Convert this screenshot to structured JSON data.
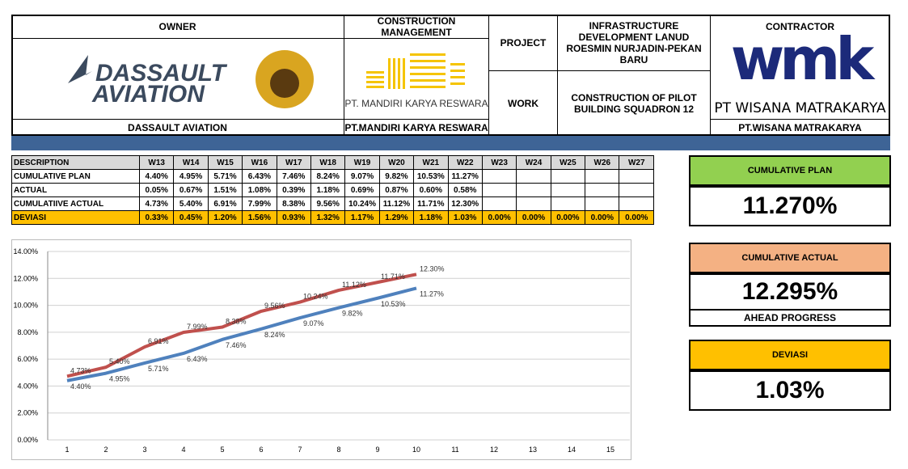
{
  "header": {
    "owner": {
      "title": "OWNER",
      "logo_text": [
        "DASSAULT",
        "AVIATION"
      ],
      "name": "DASSAULT AVIATION"
    },
    "construction_management": {
      "title": "CONSTRUCTION MANAGEMENT",
      "logo_text": "PT. MANDIRI KARYA RESWARA",
      "name": "PT.MANDIRI KARYA RESWARA"
    },
    "project": {
      "label": "PROJECT",
      "value": "INFRASTRUCTURE DEVELOPMENT LANUD ROESMIN NURJADIN-PEKAN BARU"
    },
    "work": {
      "label": "WORK",
      "value": "CONSTRUCTION OF PILOT BUILDING SQUADRON 12"
    },
    "contractor": {
      "title": "CONTRACTOR",
      "logo_text": "wmk",
      "logo_subtext": "PT WISANA MATRAKARYA",
      "name": "PT.WISANA MATRAKARYA"
    }
  },
  "table": {
    "columns": [
      "DESCRIPTION",
      "W13",
      "W14",
      "W15",
      "W16",
      "W17",
      "W18",
      "W19",
      "W20",
      "W21",
      "W22",
      "W23",
      "W24",
      "W25",
      "W26",
      "W27"
    ],
    "rows": [
      [
        "CUMULATIVE PLAN",
        "4.40%",
        "4.95%",
        "5.71%",
        "6.43%",
        "7.46%",
        "8.24%",
        "9.07%",
        "9.82%",
        "10.53%",
        "11.27%",
        null,
        null,
        null,
        null,
        null
      ],
      [
        "ACTUAL",
        "0.05%",
        "0.67%",
        "1.51%",
        "1.08%",
        "0.39%",
        "1.18%",
        "0.69%",
        "0.87%",
        "0.60%",
        "0.58%",
        null,
        null,
        null,
        null,
        null
      ],
      [
        "CUMULATIIVE ACTUAL",
        "4.73%",
        "5.40%",
        "6.91%",
        "7.99%",
        "8.38%",
        "9.56%",
        "10.24%",
        "11.12%",
        "11.71%",
        "12.30%",
        null,
        null,
        null,
        null,
        null
      ],
      [
        "DEVIASI",
        "0.33%",
        "0.45%",
        "1.20%",
        "1.56%",
        "0.93%",
        "1.32%",
        "1.17%",
        "1.29%",
        "1.18%",
        "1.03%",
        "0.00%",
        "0.00%",
        "0.00%",
        "0.00%",
        "0.00%"
      ]
    ]
  },
  "kpis": [
    {
      "title": "CUMULATIVE PLAN",
      "value": "11.270%",
      "color": "#92d050"
    },
    {
      "title": "CUMULATIVE ACTUAL",
      "value": "12.295%",
      "note": "AHEAD PROGRESS",
      "color": "#f4b183"
    },
    {
      "title": "DEVIASI",
      "value": "1.03%",
      "color": "#ffc000"
    }
  ],
  "chart_data": {
    "type": "line",
    "categories": [
      1,
      2,
      3,
      4,
      5,
      6,
      7,
      8,
      9,
      10,
      11,
      12,
      13,
      14,
      15
    ],
    "series": [
      {
        "color": "#4f81bd",
        "values": [
          4.4,
          4.95,
          5.71,
          6.43,
          7.46,
          8.24,
          9.07,
          9.82,
          10.53,
          11.27,
          null,
          null,
          null,
          null,
          null
        ],
        "value_labels": [
          "4.40%",
          "4.95%",
          "5.71%",
          "6.43%",
          "7.46%",
          "8.24%",
          "9.07%",
          "9.82%",
          "10.53%",
          "11.27%",
          null,
          null,
          null,
          null,
          null
        ]
      },
      {
        "color": "#c0504d",
        "values": [
          4.73,
          5.4,
          6.91,
          7.99,
          8.38,
          9.56,
          10.24,
          11.12,
          11.71,
          12.3,
          null,
          null,
          null,
          null,
          null
        ],
        "value_labels": [
          "4.73%",
          "5.40%",
          "6.91%",
          "7.99%",
          "8.38%",
          "9.56%",
          "10.24%",
          "11.12%",
          "11.71%",
          "12.30%",
          null,
          null,
          null,
          null,
          null
        ]
      }
    ],
    "ylim": [
      0,
      14
    ],
    "yticks": [
      {
        "value": 0,
        "label": "0.00%"
      },
      {
        "value": 2,
        "label": "2.00%"
      },
      {
        "value": 4,
        "label": "4.00%"
      },
      {
        "value": 6,
        "label": "6.00%"
      },
      {
        "value": 8,
        "label": "8.00%"
      },
      {
        "value": 10,
        "label": "10.00%"
      },
      {
        "value": 12,
        "label": "12.00%"
      },
      {
        "value": 14,
        "label": "14.00%"
      }
    ],
    "grid": true
  }
}
